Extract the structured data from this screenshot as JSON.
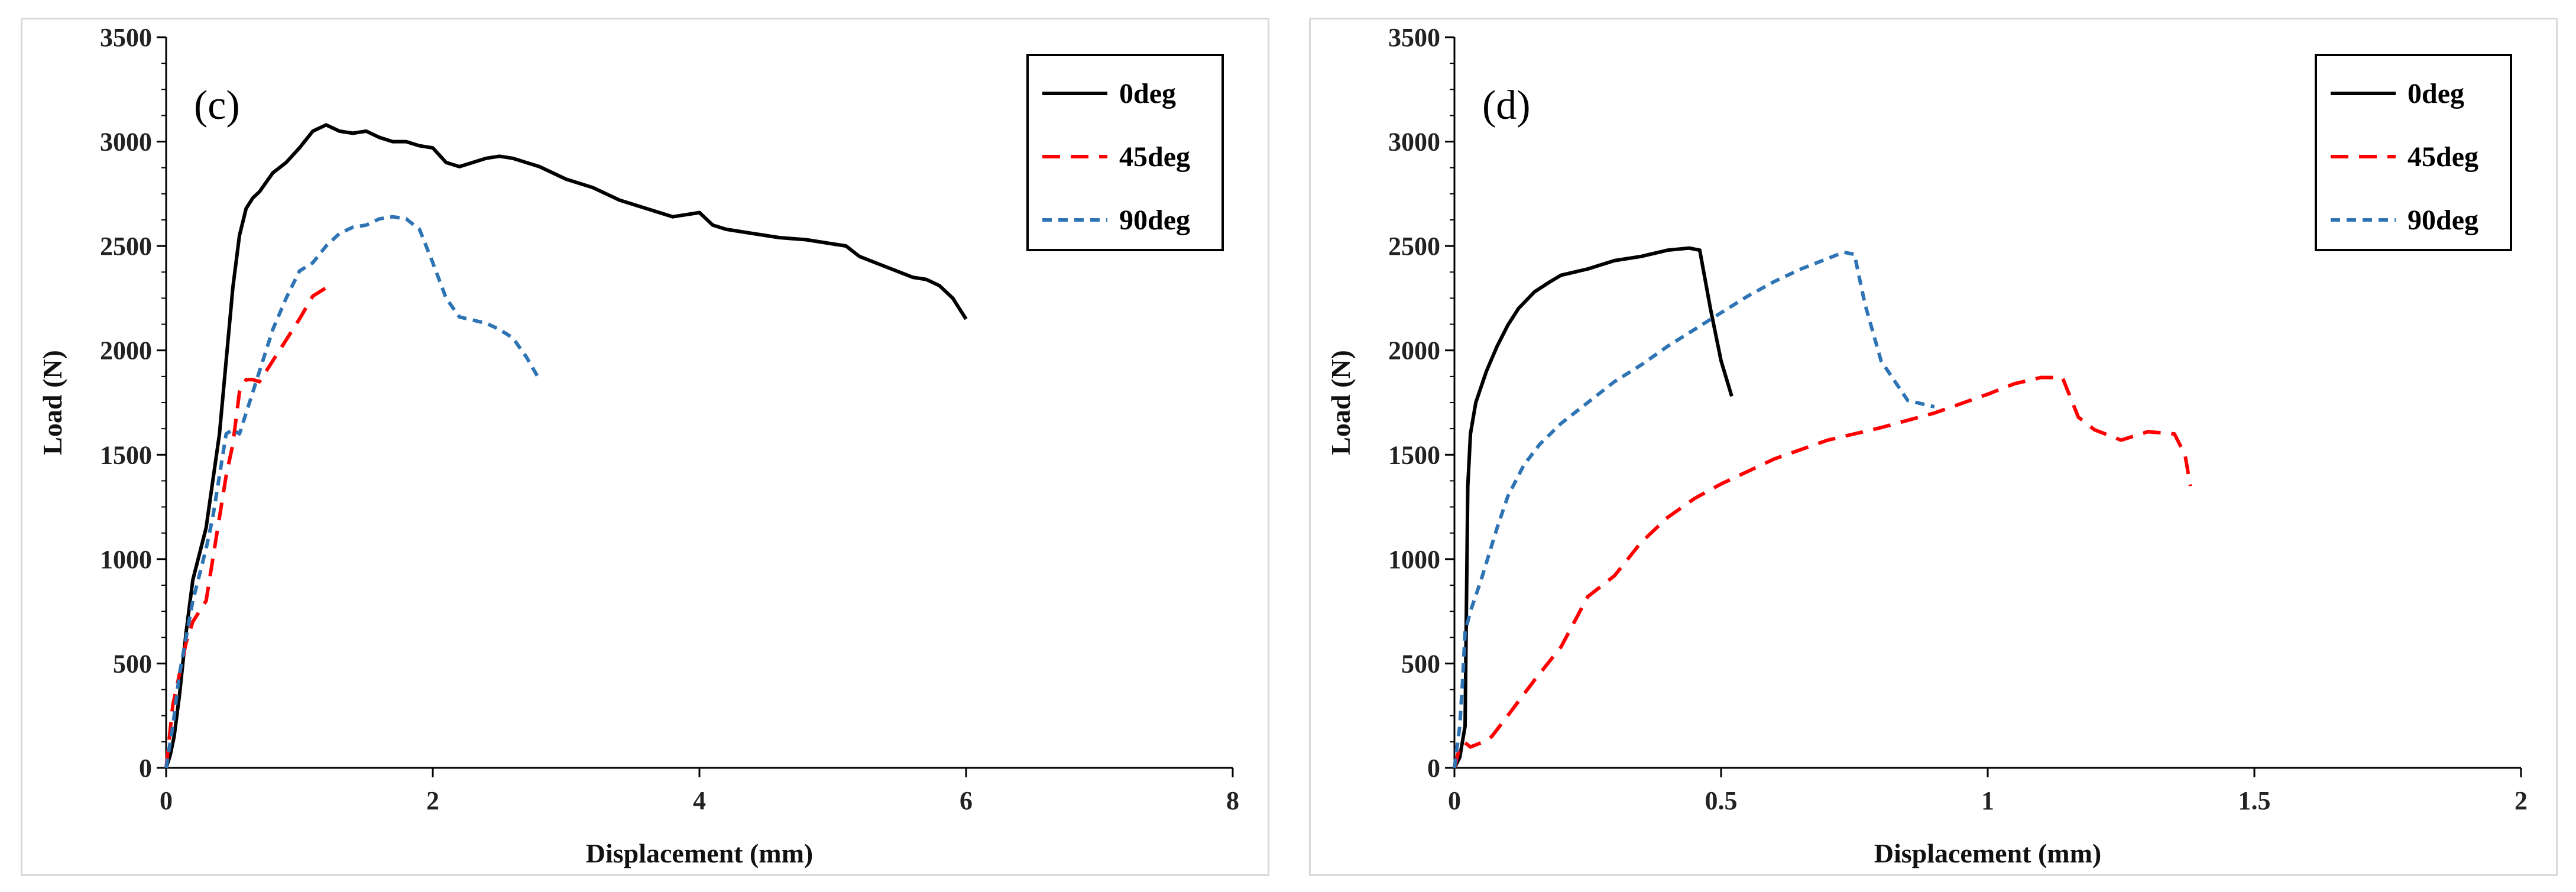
{
  "chart_data": [
    {
      "type": "line",
      "panel_label": "(c)",
      "xlabel": "Displacement (mm)",
      "ylabel": "Load (N)",
      "xlim": [
        0,
        8
      ],
      "ylim": [
        0,
        3500
      ],
      "xticks": [
        0,
        2,
        4,
        6,
        8
      ],
      "yticks": [
        0,
        500,
        1000,
        1500,
        2000,
        2500,
        3000,
        3500
      ],
      "legend_position": "top-right",
      "grid": false,
      "series": [
        {
          "name": "0deg",
          "color": "#000000",
          "dash": "solid",
          "x": [
            0,
            0.03,
            0.06,
            0.1,
            0.15,
            0.2,
            0.3,
            0.4,
            0.45,
            0.5,
            0.55,
            0.6,
            0.65,
            0.7,
            0.8,
            0.9,
            1.0,
            1.1,
            1.2,
            1.3,
            1.4,
            1.5,
            1.6,
            1.7,
            1.8,
            1.9,
            2.0,
            2.1,
            2.2,
            2.3,
            2.4,
            2.5,
            2.6,
            2.7,
            2.8,
            3.0,
            3.2,
            3.4,
            3.6,
            3.8,
            4.0,
            4.1,
            4.2,
            4.4,
            4.6,
            4.8,
            5.0,
            5.1,
            5.2,
            5.4,
            5.6,
            5.7,
            5.8,
            5.9,
            5.95,
            6.0
          ],
          "y": [
            0,
            60,
            150,
            350,
            650,
            900,
            1150,
            1600,
            1950,
            2300,
            2550,
            2680,
            2730,
            2760,
            2850,
            2900,
            2970,
            3050,
            3080,
            3050,
            3040,
            3050,
            3020,
            3000,
            3000,
            2980,
            2970,
            2900,
            2880,
            2900,
            2920,
            2930,
            2920,
            2900,
            2880,
            2820,
            2780,
            2720,
            2680,
            2640,
            2660,
            2600,
            2580,
            2560,
            2540,
            2530,
            2510,
            2500,
            2450,
            2400,
            2350,
            2340,
            2310,
            2250,
            2200,
            2150
          ]
        },
        {
          "name": "45deg",
          "color": "#ff0000",
          "dash": "long",
          "x": [
            0,
            0.05,
            0.1,
            0.15,
            0.2,
            0.25,
            0.3,
            0.35,
            0.4,
            0.45,
            0.5,
            0.55,
            0.6,
            0.65,
            0.7,
            0.8,
            0.9,
            1.0,
            1.1,
            1.2,
            1.25
          ],
          "y": [
            0,
            300,
            450,
            600,
            700,
            750,
            800,
            1000,
            1200,
            1400,
            1550,
            1800,
            1860,
            1860,
            1850,
            1950,
            2050,
            2150,
            2260,
            2300,
            2330
          ]
        },
        {
          "name": "90deg",
          "color": "#2e74b5",
          "dash": "short",
          "x": [
            0,
            0.05,
            0.1,
            0.2,
            0.3,
            0.35,
            0.4,
            0.45,
            0.5,
            0.55,
            0.6,
            0.7,
            0.8,
            0.9,
            1.0,
            1.1,
            1.2,
            1.3,
            1.4,
            1.5,
            1.6,
            1.7,
            1.8,
            1.9,
            2.0,
            2.1,
            2.2,
            2.4,
            2.5,
            2.6,
            2.7,
            2.8
          ],
          "y": [
            0,
            200,
            450,
            800,
            1050,
            1200,
            1400,
            1600,
            1620,
            1600,
            1700,
            1900,
            2100,
            2250,
            2380,
            2420,
            2500,
            2560,
            2590,
            2600,
            2630,
            2640,
            2630,
            2580,
            2420,
            2250,
            2160,
            2130,
            2100,
            2060,
            1970,
            1860
          ]
        }
      ]
    },
    {
      "type": "line",
      "panel_label": "(d)",
      "xlabel": "Displacement (mm)",
      "ylabel": "Load (N)",
      "xlim": [
        0,
        2
      ],
      "ylim": [
        0,
        3500
      ],
      "xticks": [
        0,
        0.5,
        1,
        1.5,
        2
      ],
      "xtick_labels": [
        "0",
        "0.5",
        "1",
        "1.5",
        "2"
      ],
      "yticks": [
        0,
        500,
        1000,
        1500,
        2000,
        2500,
        3000,
        3500
      ],
      "legend_position": "top-right",
      "grid": false,
      "series": [
        {
          "name": "0deg",
          "color": "#000000",
          "dash": "solid",
          "x": [
            0,
            0.01,
            0.02,
            0.025,
            0.03,
            0.04,
            0.06,
            0.08,
            0.1,
            0.12,
            0.15,
            0.18,
            0.2,
            0.25,
            0.3,
            0.35,
            0.4,
            0.44,
            0.46,
            0.48,
            0.5,
            0.52
          ],
          "y": [
            0,
            50,
            200,
            1350,
            1600,
            1750,
            1900,
            2020,
            2120,
            2200,
            2280,
            2330,
            2360,
            2390,
            2430,
            2450,
            2480,
            2490,
            2480,
            2200,
            1950,
            1780
          ]
        },
        {
          "name": "45deg",
          "color": "#ff0000",
          "dash": "long",
          "x": [
            0,
            0.01,
            0.02,
            0.03,
            0.05,
            0.07,
            0.1,
            0.15,
            0.2,
            0.25,
            0.3,
            0.35,
            0.4,
            0.45,
            0.5,
            0.6,
            0.7,
            0.8,
            0.9,
            1.0,
            1.05,
            1.1,
            1.14,
            1.17,
            1.2,
            1.25,
            1.3,
            1.35,
            1.37,
            1.38
          ],
          "y": [
            0,
            100,
            120,
            100,
            120,
            150,
            250,
            420,
            580,
            820,
            920,
            1080,
            1200,
            1290,
            1360,
            1480,
            1570,
            1630,
            1700,
            1790,
            1840,
            1870,
            1870,
            1680,
            1620,
            1570,
            1610,
            1600,
            1500,
            1350
          ]
        },
        {
          "name": "90deg",
          "color": "#2e74b5",
          "dash": "short",
          "x": [
            0,
            0.01,
            0.015,
            0.02,
            0.03,
            0.05,
            0.08,
            0.1,
            0.13,
            0.16,
            0.2,
            0.25,
            0.3,
            0.35,
            0.4,
            0.45,
            0.5,
            0.55,
            0.6,
            0.65,
            0.7,
            0.73,
            0.75,
            0.77,
            0.8,
            0.85,
            0.9
          ],
          "y": [
            0,
            200,
            400,
            650,
            750,
            900,
            1150,
            1300,
            1450,
            1550,
            1650,
            1750,
            1850,
            1930,
            2020,
            2100,
            2180,
            2260,
            2330,
            2390,
            2440,
            2470,
            2460,
            2220,
            1950,
            1760,
            1730
          ]
        }
      ]
    }
  ]
}
